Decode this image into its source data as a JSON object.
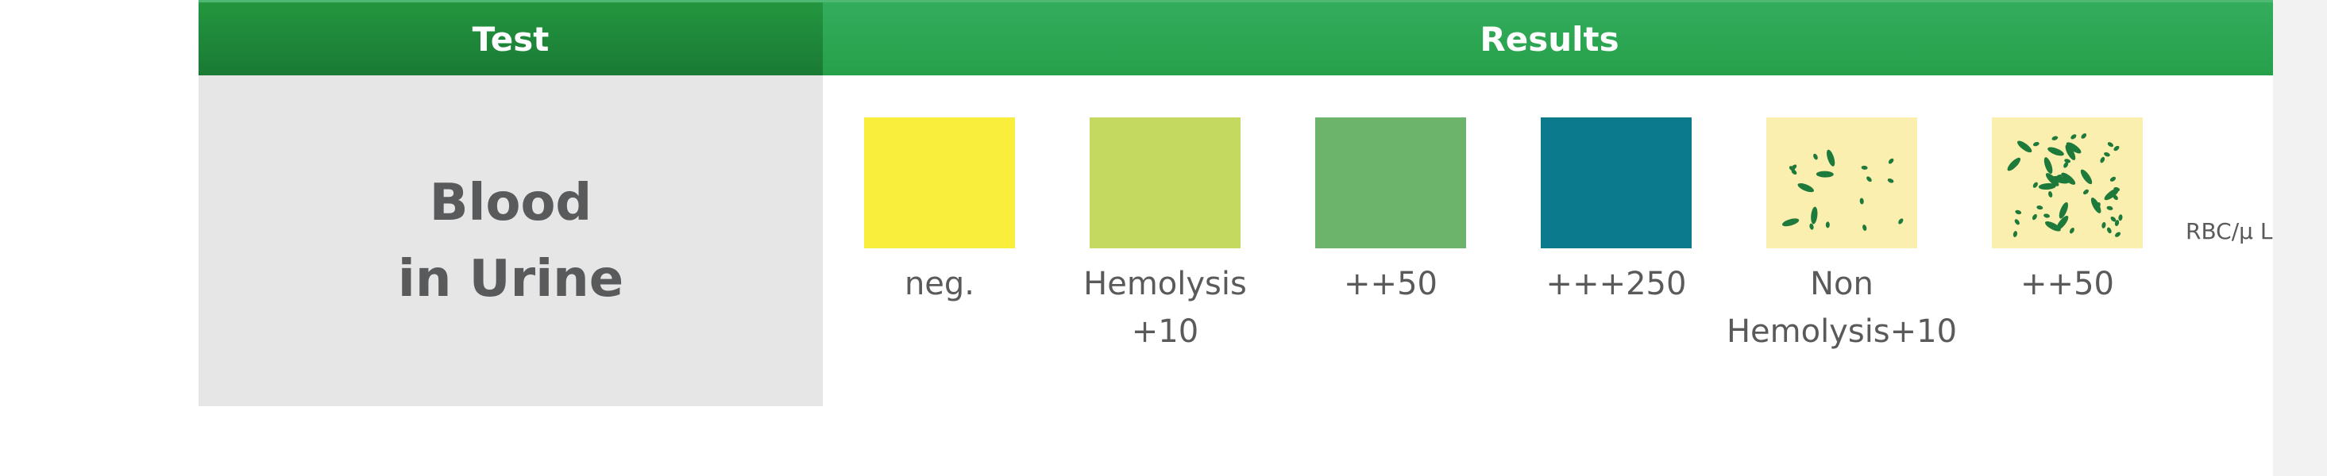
{
  "header": {
    "test": "Test",
    "results": "Results"
  },
  "test": {
    "line1": "Blood",
    "line2": "in Urine"
  },
  "results": [
    {
      "color": "#f9ee3c",
      "label1": "neg.",
      "label2": ""
    },
    {
      "color": "#c4d95f",
      "label1": "Hemolysis",
      "label2": "+10"
    },
    {
      "color": "#6cb46c",
      "label1": "++50",
      "label2": ""
    },
    {
      "color": "#0b7a8c",
      "label1": "+++250",
      "label2": ""
    },
    {
      "color": "#fbefb0",
      "pattern": "sparse-green-spots",
      "label1": "Non",
      "label2": "Hemolysis+10"
    },
    {
      "color": "#fbefb0",
      "pattern": "dense-green-spots",
      "label1": "++50",
      "label2": ""
    }
  ],
  "unit": "RBC/μ L",
  "colors": {
    "header_dark": "#1a7a34",
    "header_light": "#2ea653",
    "spot": "#1e7a3a",
    "test_bg": "#e6e6e6"
  }
}
